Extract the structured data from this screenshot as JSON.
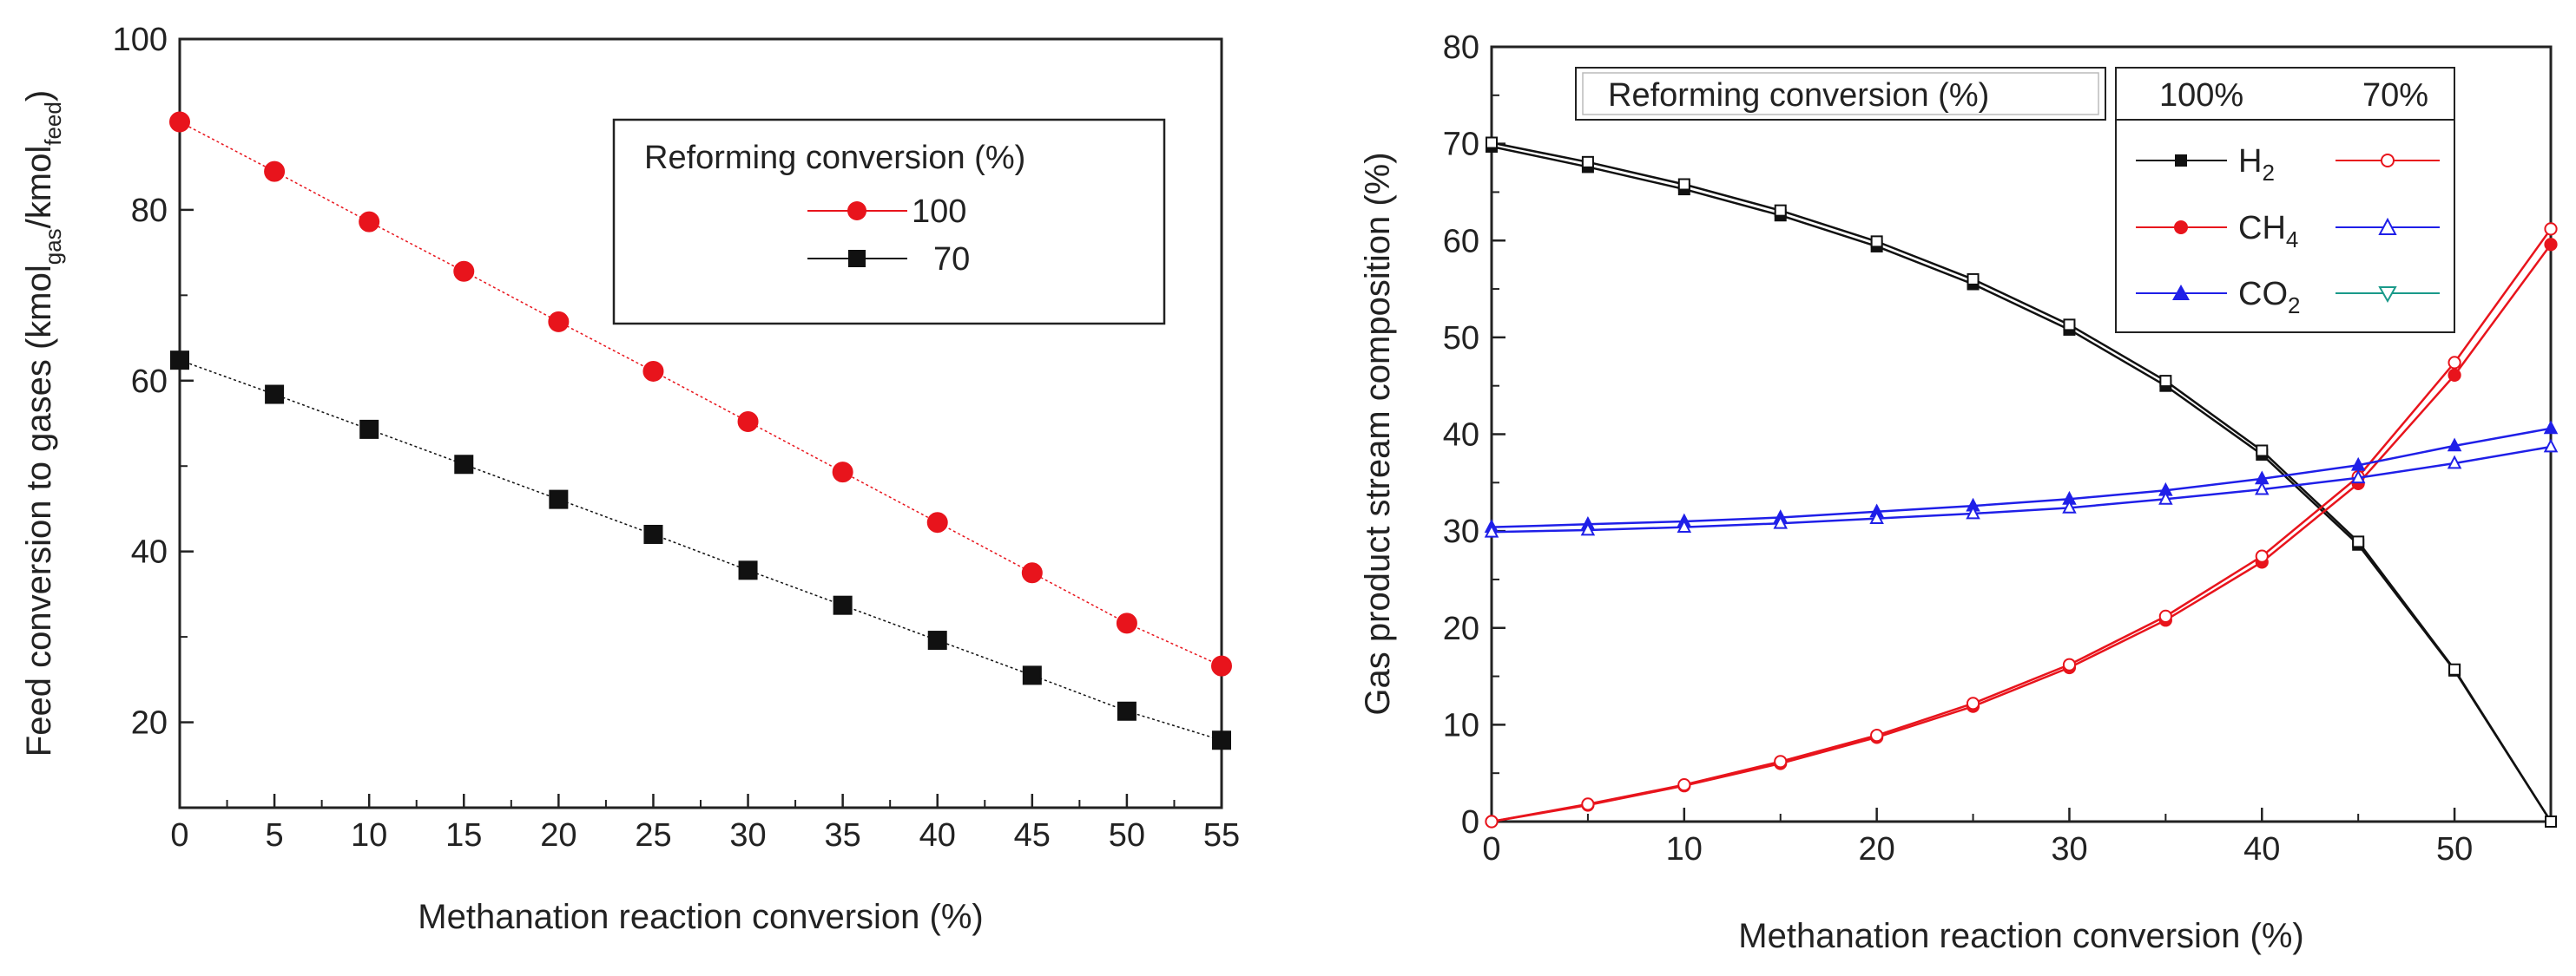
{
  "chart_data": [
    {
      "type": "line",
      "xlabel": "Methanation reaction conversion (%)",
      "ylabel": {
        "main": "Feed conversion to gases (kmol",
        "sub1": "gas",
        "mid": "/kmol",
        "sub2": "feed",
        "end": ")"
      },
      "xlim": [
        0,
        55
      ],
      "ylim": [
        10,
        100
      ],
      "xticks": [
        0,
        5,
        10,
        15,
        20,
        25,
        30,
        35,
        40,
        45,
        50,
        55
      ],
      "yticks": [
        20,
        40,
        60,
        80,
        100
      ],
      "grid": false,
      "legend": {
        "placement": "top-right",
        "title": "Reforming conversion (%)"
      },
      "series": [
        {
          "name": "100",
          "color": "#e8141c",
          "marker": "circle",
          "x": [
            0,
            5,
            10,
            15,
            20,
            25,
            30,
            35,
            40,
            45,
            50,
            55
          ],
          "y": [
            90.3,
            84.5,
            78.6,
            72.8,
            66.9,
            61.1,
            55.2,
            49.3,
            43.4,
            37.5,
            31.6,
            26.6
          ]
        },
        {
          "name": "70",
          "color": "#111111",
          "marker": "square",
          "x": [
            0,
            5,
            10,
            15,
            20,
            25,
            30,
            35,
            40,
            45,
            50,
            55
          ],
          "y": [
            62.4,
            58.4,
            54.3,
            50.2,
            46.1,
            42.0,
            37.8,
            33.7,
            29.6,
            25.5,
            21.3,
            17.9
          ]
        }
      ]
    },
    {
      "type": "line",
      "xlabel": "Methanation reaction conversion (%)",
      "ylabel": "Gas product stream composition (%)",
      "xlim": [
        0,
        55
      ],
      "ylim": [
        0,
        80
      ],
      "xticks": [
        0,
        10,
        20,
        30,
        40,
        50
      ],
      "yticks": [
        0,
        10,
        20,
        30,
        40,
        50,
        60,
        70,
        80
      ],
      "grid": false,
      "legend": {
        "placement": "top-right",
        "title": "Reforming conversion (%)",
        "col1": "100%",
        "col2": "70%",
        "rows": [
          {
            "base": "H",
            "sub": "2"
          },
          {
            "base": "CH",
            "sub": "4"
          },
          {
            "base": "CO",
            "sub": "2"
          }
        ]
      },
      "series": [
        {
          "name": "H2 100%",
          "color": "#111111",
          "marker": "square",
          "filled": true,
          "x": [
            0,
            5,
            10,
            15,
            20,
            25,
            30,
            35,
            40,
            45,
            50,
            55
          ],
          "y": [
            69.7,
            67.6,
            65.3,
            62.6,
            59.4,
            55.5,
            50.8,
            45.0,
            37.9,
            28.6,
            15.6,
            0.0
          ]
        },
        {
          "name": "H2 70%",
          "color": "#111111",
          "marker": "square",
          "filled": false,
          "x": [
            0,
            5,
            10,
            15,
            20,
            25,
            30,
            35,
            40,
            45,
            50,
            55
          ],
          "y": [
            70.1,
            68.1,
            65.8,
            63.1,
            59.9,
            56.0,
            51.3,
            45.5,
            38.3,
            28.9,
            15.7,
            0.0
          ]
        },
        {
          "name": "CH4 100%",
          "color": "#e8141c",
          "marker": "circle",
          "filled": true,
          "x": [
            0,
            5,
            10,
            15,
            20,
            25,
            30,
            35,
            40,
            45,
            50,
            55
          ],
          "y": [
            0.0,
            1.7,
            3.7,
            6.0,
            8.7,
            11.9,
            15.9,
            20.8,
            26.8,
            34.9,
            46.1,
            59.6
          ]
        },
        {
          "name": "CH4 70%",
          "color": "#e8141c",
          "marker": "circle",
          "filled": false,
          "x": [
            0,
            5,
            10,
            15,
            20,
            25,
            30,
            35,
            40,
            45,
            50,
            55
          ],
          "y": [
            0.0,
            1.8,
            3.8,
            6.2,
            8.9,
            12.2,
            16.2,
            21.2,
            27.4,
            35.6,
            47.4,
            61.2
          ]
        },
        {
          "name": "CO2 100%",
          "color": "#1f1fe8",
          "marker": "triangle-up",
          "filled": true,
          "x": [
            0,
            5,
            10,
            15,
            20,
            25,
            30,
            35,
            40,
            45,
            50,
            55
          ],
          "y": [
            30.4,
            30.7,
            31.0,
            31.4,
            32.0,
            32.6,
            33.3,
            34.2,
            35.4,
            36.8,
            38.8,
            40.6
          ]
        },
        {
          "name": "CO2 70%",
          "color": "#1f1fe8",
          "marker": "triangle-up",
          "filled": false,
          "x": [
            0,
            5,
            10,
            15,
            20,
            25,
            30,
            35,
            40,
            45,
            50,
            55
          ],
          "y": [
            29.9,
            30.1,
            30.4,
            30.8,
            31.3,
            31.8,
            32.4,
            33.3,
            34.3,
            35.5,
            37.0,
            38.7
          ]
        }
      ]
    }
  ]
}
